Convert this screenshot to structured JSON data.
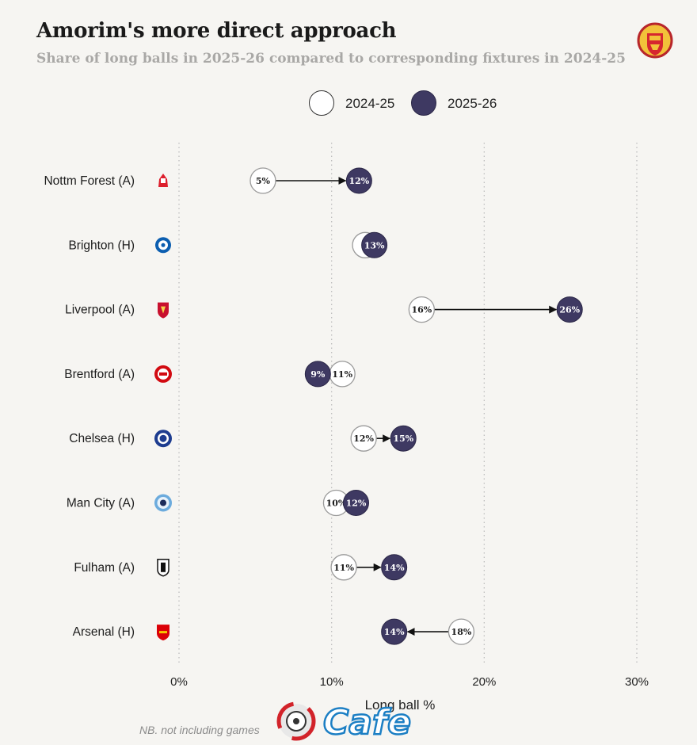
{
  "title": "Amorim's more direct approach",
  "subtitle": "Share of long balls in 2025-26 compared to corresponding fixtures in 2024-25",
  "footnote": "NB. not including games",
  "watermark_text": "Cafe",
  "colors": {
    "season_2025": "#3e3962",
    "season_2024": "#ffffff",
    "grid": "#bdbdbd",
    "arrow": "#111111"
  },
  "chart_data": {
    "type": "dumbbell",
    "xlabel": "Long ball %",
    "xlim": [
      0,
      30
    ],
    "xticks": [
      0,
      10,
      20,
      30
    ],
    "xtick_labels": [
      "0%",
      "10%",
      "20%",
      "30%"
    ],
    "legend": {
      "placement": "top-center",
      "entries": [
        "2024-25",
        "2025-26"
      ]
    },
    "grid": "vertical dotted",
    "series": [
      {
        "name": "2024-25",
        "values": [
          5,
          12,
          16,
          11,
          12,
          10,
          11,
          18
        ]
      },
      {
        "name": "2025-26",
        "values": [
          12,
          13,
          26,
          9,
          15,
          12,
          14,
          14
        ]
      }
    ],
    "categories": [
      "Nottm Forest (A)",
      "Brighton (H)",
      "Liverpool (A)",
      "Brentford (A)",
      "Chelsea (H)",
      "Man City (A)",
      "Fulham (A)",
      "Arsenal (H)"
    ],
    "rows": [
      {
        "fixture": "Nottm Forest (A)",
        "icon": "nottm-forest-crest-icon",
        "v2024": 5.5,
        "v2025": 11.8,
        "label2024": "5%",
        "label2025": "12%"
      },
      {
        "fixture": "Brighton (H)",
        "icon": "brighton-crest-icon",
        "v2024": 12.2,
        "v2025": 12.8,
        "label2024": "",
        "label2025": "13%"
      },
      {
        "fixture": "Liverpool (A)",
        "icon": "liverpool-crest-icon",
        "v2024": 15.9,
        "v2025": 25.6,
        "label2024": "16%",
        "label2025": "26%"
      },
      {
        "fixture": "Brentford (A)",
        "icon": "brentford-crest-icon",
        "v2024": 10.7,
        "v2025": 9.1,
        "label2024": "11%",
        "label2025": "9%"
      },
      {
        "fixture": "Chelsea (H)",
        "icon": "chelsea-crest-icon",
        "v2024": 12.1,
        "v2025": 14.7,
        "label2024": "12%",
        "label2025": "15%"
      },
      {
        "fixture": "Man City (A)",
        "icon": "man-city-crest-icon",
        "v2024": 10.3,
        "v2025": 11.6,
        "label2024": "10%",
        "label2025": "12%"
      },
      {
        "fixture": "Fulham (A)",
        "icon": "fulham-crest-icon",
        "v2024": 10.8,
        "v2025": 14.1,
        "label2024": "11%",
        "label2025": "14%"
      },
      {
        "fixture": "Arsenal (H)",
        "icon": "arsenal-crest-icon",
        "v2024": 18.5,
        "v2025": 14.1,
        "label2024": "18%",
        "label2025": "14%"
      }
    ]
  }
}
